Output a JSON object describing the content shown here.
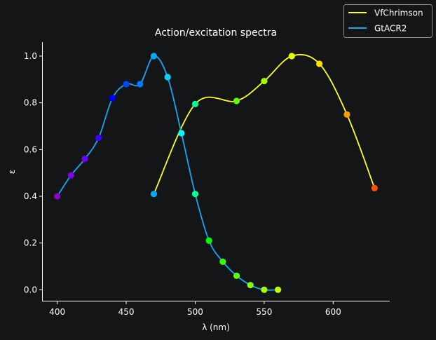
{
  "chart_data": {
    "type": "line",
    "title": "Action/excitation spectra",
    "xlabel": "λ (nm)",
    "ylabel": "ε",
    "xlim": [
      389,
      641
    ],
    "ylim": [
      -0.05,
      1.06
    ],
    "xticks": [
      400,
      450,
      500,
      550,
      600
    ],
    "yticks": [
      0.0,
      0.2,
      0.4,
      0.6,
      0.8,
      1.0
    ],
    "xtick_labels": [
      "400",
      "450",
      "500",
      "550",
      "600"
    ],
    "ytick_labels": [
      "0.0",
      "0.2",
      "0.4",
      "0.6",
      "0.8",
      "1.0"
    ],
    "grid": false,
    "legend_position": "top-right",
    "series": [
      {
        "name": "VfChrimson",
        "color": "#ffff1a",
        "x": [
          470,
          500,
          530,
          550,
          570,
          590,
          610,
          630
        ],
        "y": [
          0.41,
          0.795,
          0.808,
          0.893,
          1.0,
          0.967,
          0.75,
          0.435
        ]
      },
      {
        "name": "GtACR2",
        "color": "#14a8f0",
        "x": [
          400,
          410,
          420,
          430,
          440,
          450,
          460,
          470,
          480,
          490,
          500,
          510,
          520,
          530,
          540,
          550,
          560
        ],
        "y": [
          0.4,
          0.49,
          0.56,
          0.65,
          0.82,
          0.88,
          0.88,
          1.0,
          0.91,
          0.67,
          0.41,
          0.21,
          0.12,
          0.06,
          0.02,
          0.0,
          0.0
        ]
      }
    ]
  }
}
